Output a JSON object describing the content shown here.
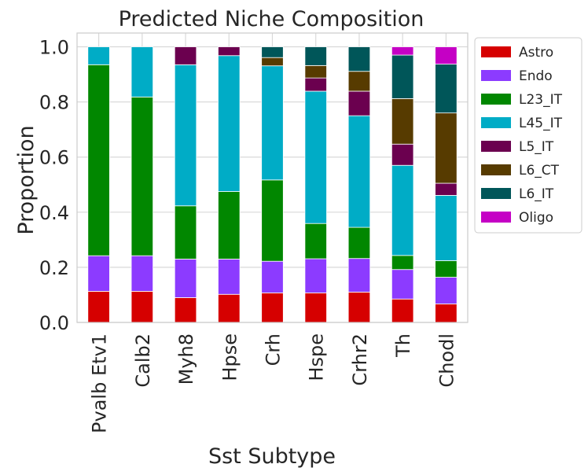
{
  "chart_data": {
    "type": "bar",
    "stacked": true,
    "title": "Predicted Niche Composition",
    "xlabel": "Sst Subtype",
    "ylabel": "Proportion",
    "ylim": [
      0,
      1.05
    ],
    "yticks": [
      "0.0",
      "0.2",
      "0.4",
      "0.6",
      "0.8",
      "1.0"
    ],
    "grid": true,
    "legend_position": "outside-right",
    "categories": [
      "Pvalb Etv1",
      "Calb2",
      "Myh8",
      "Hpse",
      "Crh",
      "Hspe",
      "Crhr2",
      "Th",
      "Chodl"
    ],
    "series": [
      {
        "name": "Astro",
        "color": "#d60000",
        "values": [
          0.113,
          0.113,
          0.09,
          0.102,
          0.107,
          0.107,
          0.11,
          0.085,
          0.067
        ]
      },
      {
        "name": "Endo",
        "color": "#8c3bff",
        "values": [
          0.129,
          0.129,
          0.14,
          0.128,
          0.115,
          0.124,
          0.122,
          0.107,
          0.097
        ]
      },
      {
        "name": "L23_IT",
        "color": "#018700",
        "values": [
          0.693,
          0.576,
          0.193,
          0.245,
          0.295,
          0.128,
          0.113,
          0.051,
          0.06
        ]
      },
      {
        "name": "L45_IT",
        "color": "#00acc6",
        "values": [
          0.065,
          0.182,
          0.512,
          0.493,
          0.414,
          0.48,
          0.405,
          0.327,
          0.237
        ]
      },
      {
        "name": "L5_IT",
        "color": "#6b004f",
        "values": [
          0,
          0,
          0.065,
          0.032,
          0,
          0.048,
          0.089,
          0.077,
          0.044
        ]
      },
      {
        "name": "L6_CT",
        "color": "#573b00",
        "values": [
          0,
          0,
          0,
          0,
          0.03,
          0.045,
          0.072,
          0.165,
          0.255
        ]
      },
      {
        "name": "L6_IT",
        "color": "#005659",
        "values": [
          0,
          0,
          0,
          0,
          0.039,
          0.068,
          0.089,
          0.158,
          0.177
        ]
      },
      {
        "name": "Oligo",
        "color": "#c500c5",
        "values": [
          0,
          0,
          0,
          0,
          0,
          0,
          0,
          0.03,
          0.063
        ]
      }
    ]
  }
}
